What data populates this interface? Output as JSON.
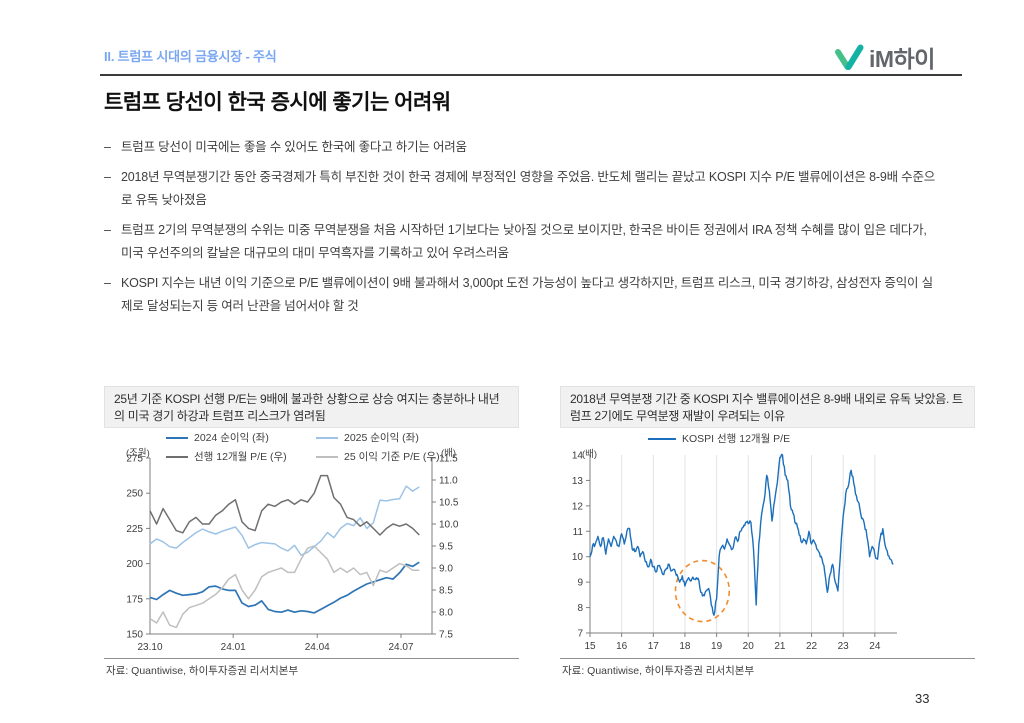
{
  "header": {
    "section": "II. 트럼프 시대의 금융시장 - 주식",
    "logo_text": "iM하이"
  },
  "title": "트럼프 당선이 한국 증시에 좋기는 어려워",
  "bullet_marker": "–",
  "bullets": [
    "트럼프 당선이 미국에는 좋을 수 있어도 한국에 좋다고 하기는 어려움",
    "2018년 무역분쟁기간 동안 중국경제가 특히 부진한 것이 한국 경제에 부정적인 영향을 주었음. 반도체 랠리는 끝났고 KOSPI 지수 P/E 밸류에이션은 8-9배 수준으로 유독 낮아졌음",
    "트럼프 2기의 무역분쟁의 수위는 미중 무역분쟁을 처음 시작하던 1기보다는 낮아질 것으로 보이지만, 한국은 바이든 정권에서 IRA 정책 수혜를 많이 입은 데다가, 미국 우선주의의 칼날은 대규모의 대미 무역흑자를 기록하고 있어 우려스러움",
    "KOSPI 지수는 내년 이익 기준으로 P/E 밸류에이션이 9배 불과해서 3,000pt 도전 가능성이 높다고 생각하지만, 트럼프 리스크, 미국 경기하강, 삼성전자 증익이 실제로 달성되는지 등 여러 난관을 넘어서야 할 것"
  ],
  "theme": {
    "header_blue": "#7aa7f0",
    "logo_green": "#45c08b",
    "logo_teal": "#12b2a4",
    "caption_bg": "#f1f1f2",
    "annotation_orange": "#f08c2e"
  },
  "page_number": "33",
  "charts": [
    {
      "caption": "25년 기준 KOSPI 선행 P/E는 9배에 불과한 상황으로 상승 여지는 충분하나 내년의 미국 경기 하강과 트럼프 리스크가 염려됨",
      "source": "자료: Quantiwise, 하이투자증권 리서치본부",
      "chart_data": {
        "type": "line",
        "unit_left": "(조원)",
        "unit_right": "(배)",
        "ylim_left": [
          150,
          275
        ],
        "yticks_left": [
          150,
          175,
          200,
          225,
          250,
          275
        ],
        "ylim_right": [
          7.5,
          11.5
        ],
        "yticks_right": [
          7.5,
          8.0,
          8.5,
          9.0,
          9.5,
          10.0,
          10.5,
          11.0,
          11.5
        ],
        "xticks": [
          {
            "label": "23.10",
            "pos": 0
          },
          {
            "label": "24.01",
            "pos": 0.295
          },
          {
            "label": "24.04",
            "pos": 0.593
          },
          {
            "label": "24.07",
            "pos": 0.89
          }
        ],
        "x_data_span": [
          0,
          0.955
        ],
        "grid": false,
        "legend_position": "top",
        "series": [
          {
            "name": "2024 순이익 (좌)",
            "axis": "left",
            "color": "#2e75b6",
            "width": 1.7,
            "values": [
              176,
              174.5,
              178,
              181,
              179,
              177.5,
              178,
              178.5,
              180,
              183.5,
              184,
              182,
              181,
              181,
              172,
              169.5,
              170.5,
              173.5,
              167.5,
              166,
              165.5,
              167,
              165.5,
              166.5,
              166,
              165,
              167.5,
              170,
              172.5,
              175.5,
              177.5,
              180.5,
              183,
              185.5,
              187,
              188.5,
              190,
              189,
              193.5,
              199.5,
              198,
              201
            ]
          },
          {
            "name": "2025 순이익 (좌)",
            "axis": "left",
            "color": "#9dc3e6",
            "width": 1.5,
            "values": [
              214,
              217.5,
              215.5,
              212,
              211,
              215,
              218.5,
              222,
              224.5,
              222.5,
              221,
              223,
              224.5,
              226,
              220,
              211,
              213.5,
              215,
              214.5,
              214,
              211,
              209,
              213,
              206,
              208,
              212,
              216,
              222,
              218.5,
              225,
              228.5,
              227,
              232.5,
              225,
              229,
              245,
              244.5,
              245.5,
              246,
              255,
              251.5,
              254.5
            ]
          },
          {
            "name": "선행 12개월 P/E (우)",
            "axis": "right",
            "color": "#6f6f6f",
            "width": 1.5,
            "values": [
              10.3,
              10.0,
              10.35,
              10.1,
              9.85,
              9.8,
              10.05,
              10.15,
              10.0,
              10.0,
              10.2,
              10.3,
              10.45,
              10.55,
              10.05,
              9.9,
              9.85,
              10.3,
              10.45,
              10.4,
              10.5,
              10.55,
              10.45,
              10.55,
              10.5,
              10.7,
              11.1,
              11.1,
              10.6,
              10.45,
              10.15,
              10.1,
              9.95,
              10.05,
              9.9,
              9.75,
              9.9,
              10.0,
              9.95,
              10.0,
              9.9,
              9.75
            ]
          },
          {
            "name": "25 이익 기준 P/E (우)",
            "axis": "right",
            "color": "#bfbfbf",
            "width": 1.5,
            "values": [
              7.85,
              7.75,
              8.0,
              7.7,
              7.65,
              7.95,
              8.1,
              8.15,
              8.2,
              8.3,
              8.4,
              8.55,
              8.75,
              8.85,
              8.5,
              8.3,
              8.5,
              8.8,
              8.9,
              8.95,
              9.0,
              8.9,
              8.9,
              9.2,
              9.45,
              9.5,
              9.35,
              9.2,
              8.9,
              9.0,
              8.9,
              9.0,
              8.85,
              8.9,
              8.6,
              8.95,
              8.9,
              9.0,
              9.1,
              9.05,
              8.95,
              8.95
            ]
          }
        ]
      }
    },
    {
      "caption": "2018년 무역분쟁 기간 중 KOSPI 지수 밸류에이션은 8-9배 내외로 유독 낮았음. 트럼프 2기에도 무역분쟁 재발이 우려되는 이유",
      "source": "자료: Quantiwise, 하이투자증권 리서치본부",
      "chart_data": {
        "type": "line",
        "unit_left": "(배)",
        "ylim": [
          7,
          14
        ],
        "yticks": [
          7,
          8,
          9,
          10,
          11,
          12,
          13,
          14
        ],
        "xlim": [
          15,
          24.7
        ],
        "xticks": [
          15,
          16,
          17,
          18,
          19,
          20,
          21,
          22,
          23,
          24
        ],
        "grid": "vertical",
        "legend_position": "top",
        "x_start": 15,
        "x_step": 0.083333,
        "series": [
          {
            "name": "KOSPI 선행 12개월 P/E",
            "color": "#1b6fbc",
            "width": 1.4,
            "values": [
              10.0,
              10.45,
              10.5,
              10.8,
              10.4,
              10.75,
              10.1,
              10.7,
              10.4,
              10.8,
              10.6,
              10.4,
              10.9,
              10.5,
              11.0,
              11.1,
              10.3,
              10.2,
              10.4,
              10.0,
              10.2,
              9.8,
              9.6,
              9.9,
              9.6,
              9.4,
              9.65,
              9.5,
              9.3,
              9.55,
              9.7,
              9.45,
              9.5,
              9.3,
              9.0,
              9.25,
              8.85,
              9.1,
              9.05,
              9.2,
              9.1,
              9.15,
              8.6,
              8.5,
              8.65,
              8.75,
              8.1,
              7.7,
              8.35,
              10.05,
              10.4,
              10.3,
              10.7,
              10.45,
              10.3,
              10.75,
              10.6,
              11.0,
              11.15,
              11.35,
              11.3,
              11.35,
              10.3,
              8.1,
              10.5,
              11.6,
              12.2,
              13.2,
              12.6,
              11.4,
              12.2,
              12.9,
              13.9,
              14.0,
              13.2,
              13.0,
              12.0,
              11.7,
              11.3,
              11.05,
              10.6,
              10.7,
              10.5,
              11.0,
              10.5,
              10.6,
              10.3,
              10.15,
              9.9,
              9.4,
              8.6,
              9.3,
              9.7,
              9.0,
              8.65,
              10.2,
              11.6,
              12.5,
              12.8,
              13.4,
              12.9,
              12.4,
              12.1,
              11.5,
              11.3,
              10.8,
              10.0,
              10.4,
              10.1,
              9.9,
              10.7,
              11.1,
              10.4,
              10.05,
              9.9,
              9.7
            ]
          }
        ],
        "annotation_circle": {
          "cx": 18.55,
          "cy": 8.65,
          "rx": 0.85,
          "ry": 1.2,
          "color": "#f08c2e"
        }
      }
    }
  ]
}
